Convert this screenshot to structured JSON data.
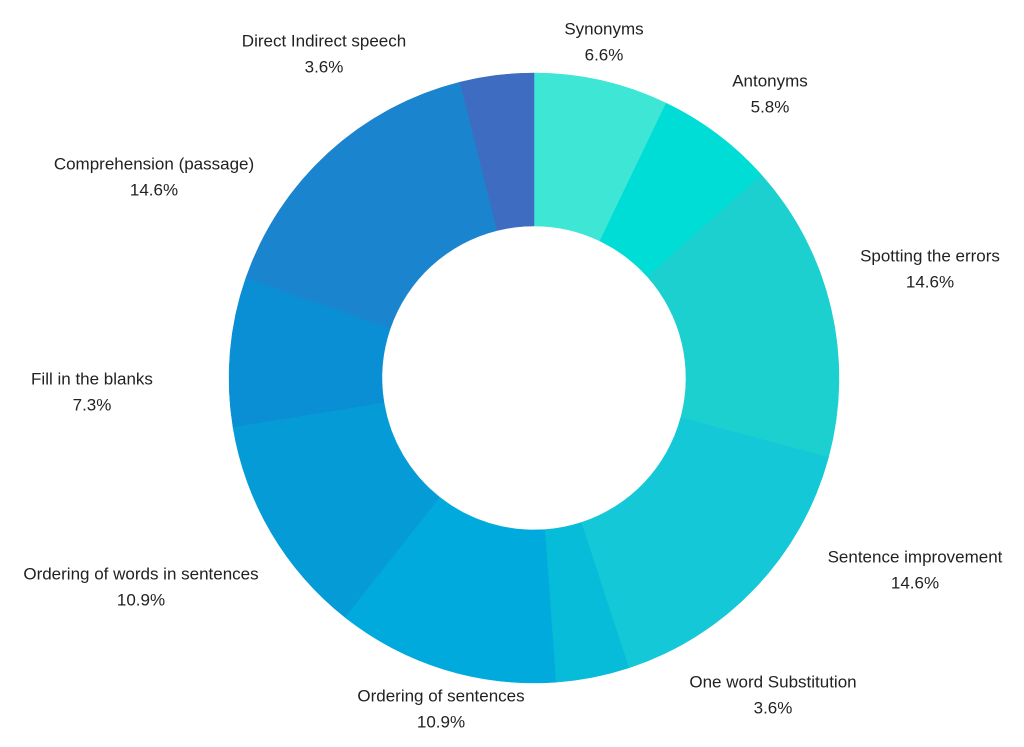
{
  "chart_data": {
    "type": "donut",
    "categories": [
      "Synonyms",
      "Antonyms",
      "Spotting the errors",
      "Sentence improvement",
      "One word Substitution",
      "Ordering of sentences",
      "Ordering of words in sentences",
      "Fill in the blanks",
      "Comprehension (passage)",
      "Direct Indirect speech"
    ],
    "values": [
      6.6,
      5.8,
      14.6,
      14.6,
      3.6,
      10.9,
      10.9,
      7.3,
      14.6,
      3.6
    ],
    "value_labels": [
      "6.6%",
      "5.8%",
      "14.6%",
      "14.6%",
      "3.6%",
      "10.9%",
      "10.9%",
      "7.3%",
      "14.6%",
      "3.6%"
    ],
    "colors": [
      "#3ee6d6",
      "#00dcd6",
      "#1dd0d0",
      "#14c8d8",
      "#06bcd8",
      "#00aadc",
      "#059bd6",
      "#0a8ed4",
      "#1b84cf",
      "#3d6cc0"
    ]
  }
}
